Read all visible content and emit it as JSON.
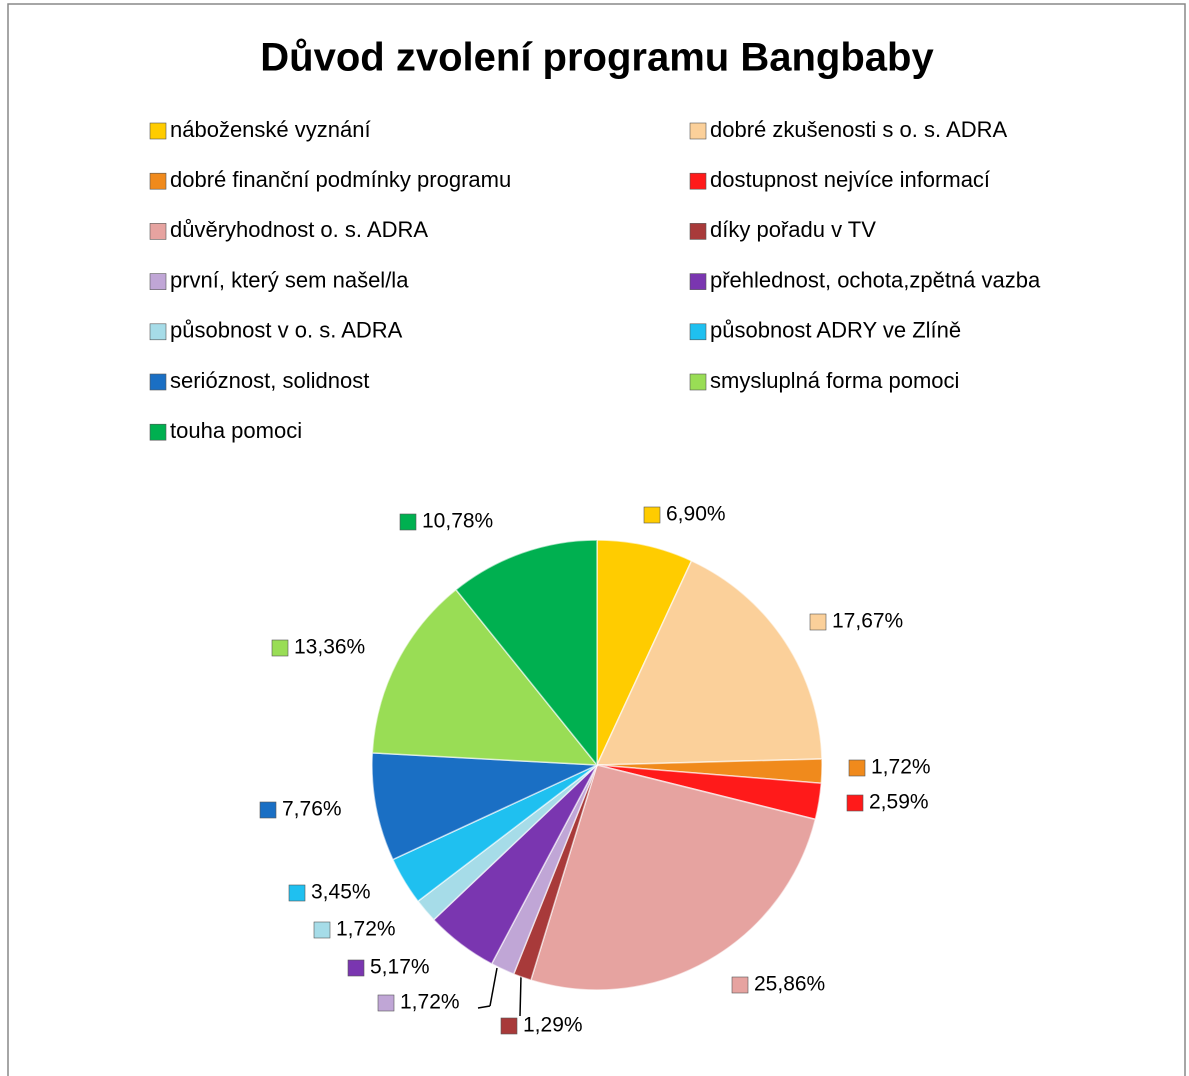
{
  "chart_data": {
    "type": "pie",
    "title": "Důvod zvolení programu Bangbaby",
    "categories": [
      "náboženské vyznání",
      "dobré zkušenosti s o. s. ADRA",
      "dobré finanční podmínky programu",
      "dostupnost nejvíce informací",
      "důvěryhodnost o. s. ADRA",
      "díky pořadu v TV",
      "první, který sem našel/la",
      "přehlednost, ochota,zpětná vazba",
      "působnost v o. s. ADRA",
      "působnost ADRY ve Zlíně",
      "serióznost, solidnost",
      "smysluplná forma pomoci",
      "touha pomoci"
    ],
    "values": [
      6.9,
      17.67,
      1.72,
      2.59,
      25.86,
      1.29,
      1.72,
      5.17,
      1.72,
      3.45,
      7.76,
      13.36,
      10.78
    ],
    "value_labels": [
      "6,90%",
      "17,67%",
      "1,72%",
      "2,59%",
      "25,86%",
      "1,29%",
      "1,72%",
      "5,17%",
      "1,72%",
      "3,45%",
      "7,76%",
      "13,36%",
      "10,78%"
    ],
    "colors": [
      "#ffcc00",
      "#fbd09a",
      "#f08a1c",
      "#ff1a1a",
      "#e6a3a0",
      "#a83a3a",
      "#c0a6d6",
      "#7a36b0",
      "#a6dce8",
      "#1fc0f0",
      "#1a6fc4",
      "#99dd55",
      "#00b050"
    ]
  }
}
